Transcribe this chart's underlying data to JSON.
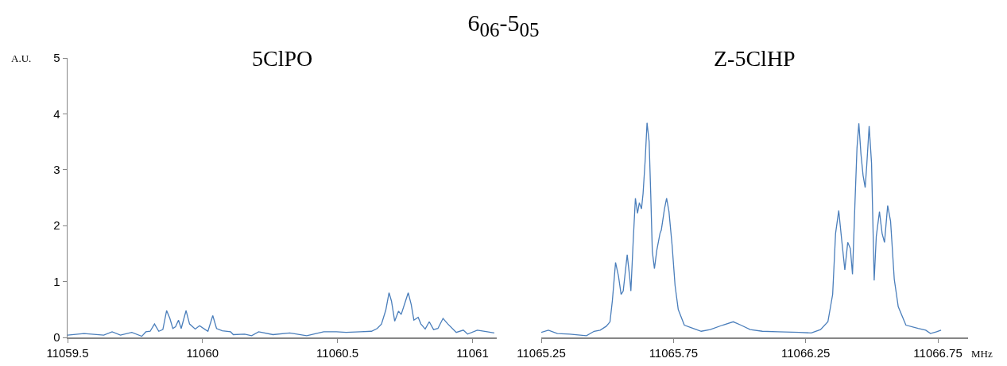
{
  "chart_data": [
    {
      "type": "line",
      "title": "6$_{06}$-5$_{05}$",
      "subtitle": "5ClPO",
      "ylabel": "A.U.",
      "color": "#4a7ebb",
      "x": [
        11059.5,
        11059.561,
        11059.634,
        11059.665,
        11059.696,
        11059.738,
        11059.775,
        11059.79,
        11059.806,
        11059.822,
        11059.838,
        11059.853,
        11059.867,
        11059.879,
        11059.89,
        11059.9,
        11059.911,
        11059.921,
        11059.939,
        11059.952,
        11059.973,
        11059.989,
        11060.01,
        11060.02,
        11060.038,
        11060.052,
        11060.073,
        11060.104,
        11060.114,
        11060.156,
        11060.182,
        11060.208,
        11060.261,
        11060.323,
        11060.386,
        11060.449,
        11060.496,
        11060.532,
        11060.585,
        11060.626,
        11060.647,
        11060.663,
        11060.679,
        11060.691,
        11060.7,
        11060.712,
        11060.726,
        11060.736,
        11060.752,
        11060.762,
        11060.773,
        11060.783,
        11060.799,
        11060.809,
        11060.825,
        11060.84,
        11060.856,
        11060.872,
        11060.891,
        11060.909,
        11060.94,
        11060.966,
        11060.982,
        11061.018,
        11061.055,
        11061.081
      ],
      "values": [
        0.04,
        0.07,
        0.04,
        0.1,
        0.04,
        0.09,
        0.02,
        0.1,
        0.11,
        0.24,
        0.11,
        0.14,
        0.48,
        0.34,
        0.16,
        0.19,
        0.31,
        0.16,
        0.48,
        0.24,
        0.15,
        0.21,
        0.14,
        0.11,
        0.39,
        0.16,
        0.12,
        0.1,
        0.05,
        0.06,
        0.03,
        0.1,
        0.05,
        0.08,
        0.03,
        0.1,
        0.1,
        0.09,
        0.1,
        0.11,
        0.16,
        0.24,
        0.49,
        0.8,
        0.65,
        0.29,
        0.47,
        0.41,
        0.65,
        0.8,
        0.59,
        0.31,
        0.36,
        0.24,
        0.15,
        0.28,
        0.14,
        0.16,
        0.34,
        0.24,
        0.09,
        0.13,
        0.06,
        0.13,
        0.1,
        0.08
      ],
      "xlim": [
        11059.5,
        11061.09
      ],
      "xticks": [
        11059.5,
        11060,
        11060.5,
        11061
      ],
      "ylim": [
        0,
        5
      ],
      "yticks": [
        0,
        1,
        2,
        3,
        4,
        5
      ]
    },
    {
      "type": "line",
      "title": "Z-5ClHP",
      "xlabel": "MHz",
      "color": "#4a7ebb",
      "x": [
        11065.25,
        11065.277,
        11065.311,
        11065.358,
        11065.421,
        11065.45,
        11065.473,
        11065.496,
        11065.51,
        11065.519,
        11065.531,
        11065.542,
        11065.552,
        11065.56,
        11065.575,
        11065.584,
        11065.589,
        11065.598,
        11065.606,
        11065.614,
        11065.621,
        11065.629,
        11065.635,
        11065.643,
        11065.65,
        11065.658,
        11065.664,
        11065.67,
        11065.678,
        11065.687,
        11065.699,
        11065.704,
        11065.716,
        11065.724,
        11065.733,
        11065.745,
        11065.756,
        11065.768,
        11065.791,
        11065.82,
        11065.855,
        11065.889,
        11065.936,
        11065.976,
        11066.005,
        11066.04,
        11066.086,
        11066.144,
        11066.225,
        11066.271,
        11066.306,
        11066.334,
        11066.352,
        11066.363,
        11066.375,
        11066.386,
        11066.398,
        11066.409,
        11066.419,
        11066.427,
        11066.436,
        11066.444,
        11066.451,
        11066.459,
        11066.467,
        11066.475,
        11066.481,
        11066.49,
        11066.499,
        11066.509,
        11066.517,
        11066.529,
        11066.539,
        11066.548,
        11066.56,
        11066.571,
        11066.585,
        11066.6,
        11066.629,
        11066.675,
        11066.704,
        11066.722,
        11066.745,
        11066.762
      ],
      "values": [
        0.09,
        0.13,
        0.07,
        0.06,
        0.03,
        0.11,
        0.13,
        0.2,
        0.28,
        0.66,
        1.34,
        1.1,
        0.77,
        0.83,
        1.48,
        1.1,
        0.83,
        1.75,
        2.49,
        2.22,
        2.41,
        2.3,
        2.57,
        3.17,
        3.84,
        3.5,
        2.57,
        1.54,
        1.23,
        1.56,
        1.86,
        1.92,
        2.3,
        2.49,
        2.25,
        1.64,
        0.93,
        0.5,
        0.22,
        0.17,
        0.11,
        0.14,
        0.22,
        0.28,
        0.22,
        0.14,
        0.11,
        0.1,
        0.09,
        0.08,
        0.14,
        0.28,
        0.77,
        1.86,
        2.27,
        1.75,
        1.21,
        1.7,
        1.59,
        1.13,
        2.36,
        3.39,
        3.83,
        3.28,
        2.9,
        2.68,
        3.09,
        3.78,
        3.12,
        1.02,
        1.81,
        2.25,
        1.86,
        1.7,
        2.36,
        2.08,
        1.04,
        0.55,
        0.22,
        0.16,
        0.13,
        0.07,
        0.1,
        0.13
      ],
      "xlim": [
        11065.25,
        11066.864
      ],
      "xticks": [
        11065.25,
        11065.75,
        11066.25,
        11066.75
      ],
      "ylim": [
        0,
        5
      ],
      "yticks": [
        0,
        1,
        2,
        3,
        4,
        5
      ],
      "tick_labels": "x"
    }
  ]
}
